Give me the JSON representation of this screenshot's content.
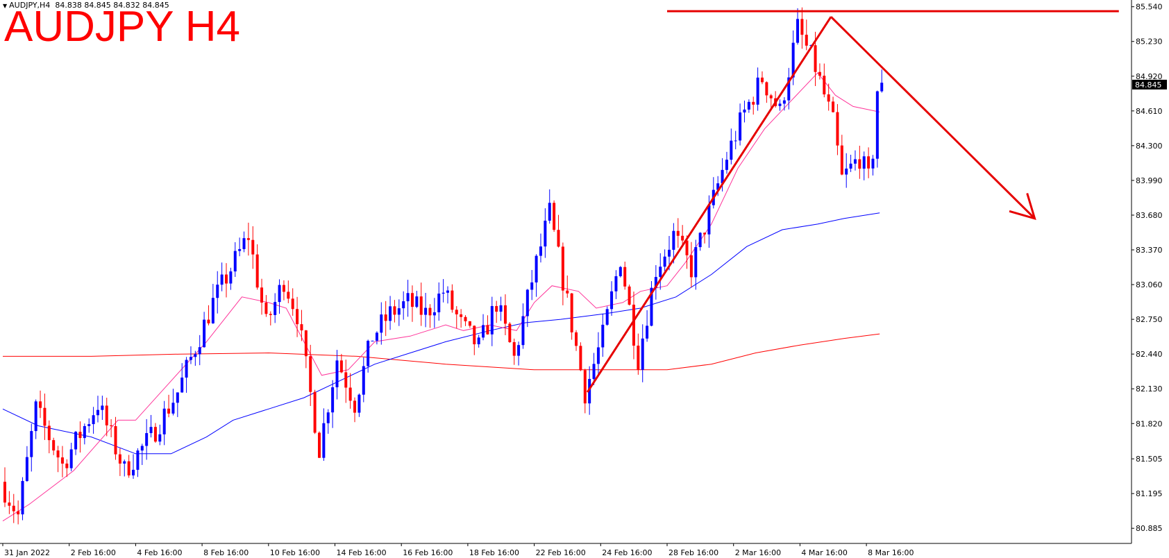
{
  "header": {
    "symbol": "AUDJPY,H4",
    "ohlc": "84.838 84.845 84.832 84.845",
    "big_title": "AUDJPY H4"
  },
  "chart_data": {
    "type": "candlestick",
    "symbol": "AUDJPY",
    "timeframe": "H4",
    "ylim": [
      80.75,
      85.6
    ],
    "y_ticks": [
      "85.540",
      "85.230",
      "84.920",
      "84.610",
      "84.300",
      "83.990",
      "83.680",
      "83.370",
      "83.060",
      "82.750",
      "82.440",
      "82.130",
      "81.820",
      "81.505",
      "81.195",
      "80.885"
    ],
    "x_ticks": [
      "31 Jan 2022",
      "2 Feb 16:00",
      "4 Feb 16:00",
      "8 Feb 16:00",
      "10 Feb 16:00",
      "14 Feb 16:00",
      "16 Feb 16:00",
      "18 Feb 16:00",
      "22 Feb 16:00",
      "24 Feb 16:00",
      "28 Feb 16:00",
      "2 Mar 16:00",
      "4 Mar 16:00",
      "8 Mar 16:00"
    ],
    "x_tick_bars": [
      0,
      15,
      30,
      45,
      60,
      75,
      90,
      105,
      120,
      135,
      150,
      165,
      180,
      195
    ],
    "bar_count": 200,
    "current_price": "84.845",
    "colors": {
      "bull": "#0000ff",
      "bear": "#ff0000",
      "ma_fast": "#ff3399",
      "ma_mid": "#0000ff",
      "ma_slow": "#ff0000",
      "annotation": "#e60000"
    },
    "price_path": [
      [
        0,
        81.3
      ],
      [
        4,
        81.0
      ],
      [
        8,
        81.95
      ],
      [
        14,
        81.45
      ],
      [
        22,
        82.0
      ],
      [
        28,
        81.4
      ],
      [
        34,
        81.7
      ],
      [
        40,
        82.1
      ],
      [
        48,
        82.9
      ],
      [
        56,
        83.5
      ],
      [
        60,
        82.7
      ],
      [
        64,
        83.1
      ],
      [
        67,
        82.8
      ],
      [
        72,
        81.6
      ],
      [
        76,
        82.4
      ],
      [
        80,
        82.0
      ],
      [
        84,
        82.6
      ],
      [
        88,
        82.8
      ],
      [
        92,
        82.9
      ],
      [
        96,
        82.8
      ],
      [
        100,
        83.0
      ],
      [
        104,
        82.7
      ],
      [
        108,
        82.5
      ],
      [
        112,
        82.9
      ],
      [
        116,
        82.4
      ],
      [
        120,
        83.1
      ],
      [
        124,
        83.7
      ],
      [
        128,
        82.9
      ],
      [
        132,
        82.1
      ],
      [
        136,
        82.6
      ],
      [
        140,
        83.3
      ],
      [
        144,
        82.4
      ],
      [
        148,
        83.2
      ],
      [
        152,
        83.5
      ],
      [
        156,
        83.2
      ],
      [
        160,
        83.7
      ],
      [
        164,
        84.2
      ],
      [
        168,
        84.6
      ],
      [
        172,
        84.9
      ],
      [
        176,
        84.6
      ],
      [
        180,
        85.35
      ],
      [
        184,
        85.0
      ],
      [
        188,
        84.5
      ],
      [
        190,
        84.0
      ],
      [
        194,
        84.2
      ],
      [
        196,
        84.0
      ],
      [
        197,
        84.25
      ],
      [
        198,
        84.8
      ]
    ],
    "ma_fast_path": [
      [
        0,
        80.95
      ],
      [
        6,
        81.1
      ],
      [
        16,
        81.4
      ],
      [
        26,
        81.85
      ],
      [
        30,
        81.85
      ],
      [
        38,
        82.2
      ],
      [
        46,
        82.55
      ],
      [
        54,
        82.95
      ],
      [
        60,
        82.9
      ],
      [
        64,
        82.85
      ],
      [
        68,
        82.55
      ],
      [
        72,
        82.25
      ],
      [
        78,
        82.3
      ],
      [
        84,
        82.55
      ],
      [
        92,
        82.6
      ],
      [
        100,
        82.7
      ],
      [
        104,
        82.65
      ],
      [
        110,
        82.7
      ],
      [
        116,
        82.65
      ],
      [
        120,
        82.9
      ],
      [
        124,
        83.05
      ],
      [
        130,
        83.0
      ],
      [
        134,
        82.85
      ],
      [
        140,
        82.9
      ],
      [
        144,
        83.0
      ],
      [
        150,
        83.05
      ],
      [
        154,
        83.25
      ],
      [
        160,
        83.6
      ],
      [
        166,
        84.1
      ],
      [
        172,
        84.45
      ],
      [
        178,
        84.7
      ],
      [
        184,
        84.95
      ],
      [
        188,
        84.75
      ],
      [
        192,
        84.65
      ],
      [
        198,
        84.6
      ]
    ],
    "ma_mid_path": [
      [
        0,
        81.95
      ],
      [
        8,
        81.8
      ],
      [
        20,
        81.7
      ],
      [
        30,
        81.55
      ],
      [
        38,
        81.55
      ],
      [
        46,
        81.7
      ],
      [
        52,
        81.85
      ],
      [
        60,
        81.95
      ],
      [
        68,
        82.05
      ],
      [
        76,
        82.2
      ],
      [
        84,
        82.35
      ],
      [
        92,
        82.45
      ],
      [
        100,
        82.55
      ],
      [
        110,
        82.65
      ],
      [
        118,
        82.72
      ],
      [
        126,
        82.75
      ],
      [
        136,
        82.8
      ],
      [
        144,
        82.85
      ],
      [
        152,
        82.95
      ],
      [
        160,
        83.15
      ],
      [
        168,
        83.4
      ],
      [
        176,
        83.55
      ],
      [
        184,
        83.6
      ],
      [
        190,
        83.65
      ],
      [
        198,
        83.7
      ]
    ],
    "ma_slow_path": [
      [
        0,
        82.42
      ],
      [
        20,
        82.42
      ],
      [
        40,
        82.44
      ],
      [
        60,
        82.45
      ],
      [
        80,
        82.42
      ],
      [
        100,
        82.35
      ],
      [
        120,
        82.3
      ],
      [
        140,
        82.3
      ],
      [
        150,
        82.3
      ],
      [
        160,
        82.35
      ],
      [
        170,
        82.45
      ],
      [
        180,
        82.52
      ],
      [
        190,
        82.58
      ],
      [
        198,
        82.62
      ]
    ],
    "annotations": {
      "resistance": {
        "price": 85.5,
        "from_bar": 150,
        "to_bar": 252
      },
      "up_trendline": {
        "from": [
          132,
          82.1
        ],
        "to": [
          187,
          85.45
        ]
      },
      "down_arrow": {
        "from": [
          187,
          85.45
        ],
        "to": [
          233,
          83.65
        ]
      }
    }
  }
}
